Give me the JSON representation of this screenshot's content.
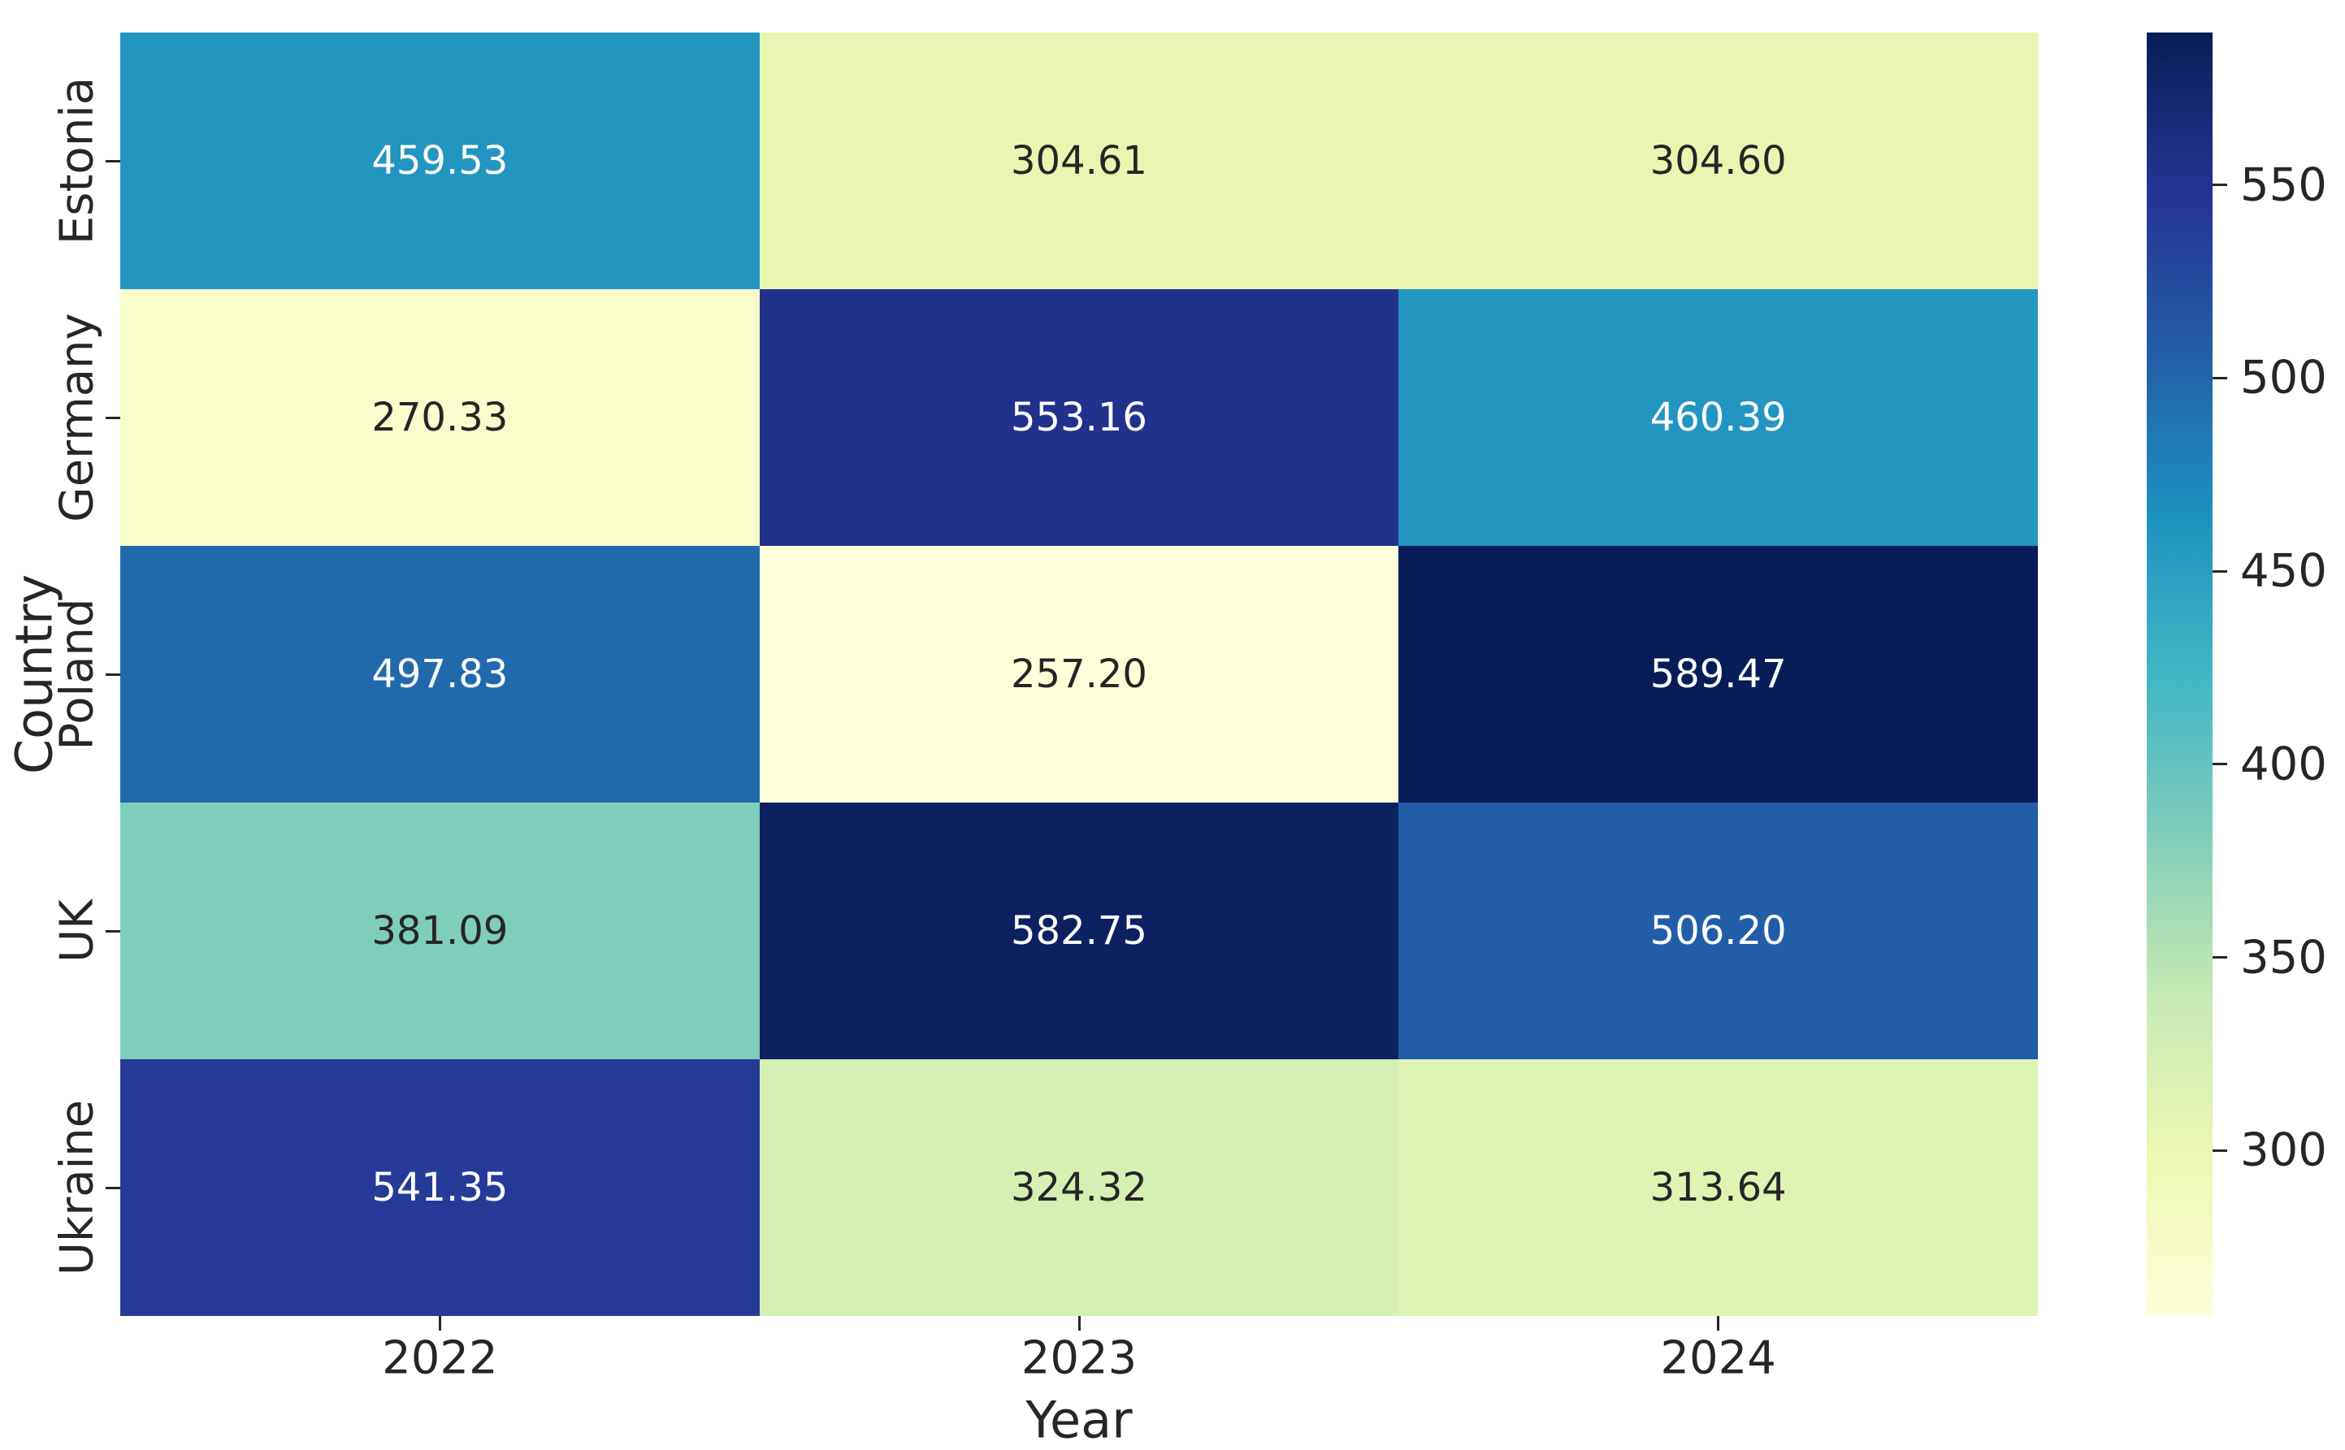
{
  "figure": {
    "xlabel": "Year",
    "ylabel": "Country",
    "background": "#ffffff",
    "text_color": "#262626"
  },
  "chart_data": {
    "type": "heatmap",
    "title": "",
    "xlabel": "Year",
    "ylabel": "Country",
    "colormap": "YlGnBu",
    "x": [
      "2022",
      "2023",
      "2024"
    ],
    "y": [
      "Estonia",
      "Germany",
      "Poland",
      "UK",
      "Ukraine"
    ],
    "values": [
      [
        459.53,
        304.61,
        304.6
      ],
      [
        270.33,
        553.16,
        460.39
      ],
      [
        497.83,
        257.2,
        589.47
      ],
      [
        381.09,
        582.75,
        506.2
      ],
      [
        541.35,
        324.32,
        313.64
      ]
    ],
    "annotations": [
      [
        "459.53",
        "304.61",
        "304.60"
      ],
      [
        "270.33",
        "553.16",
        "460.39"
      ],
      [
        "497.83",
        "257.20",
        "589.47"
      ],
      [
        "381.09",
        "582.75",
        "506.20"
      ],
      [
        "541.35",
        "324.32",
        "313.64"
      ]
    ],
    "cell_colors": [
      [
        "#2296c1",
        "#e8f6b1",
        "#e8f6b1"
      ],
      [
        "#f9fdcc",
        "#21318c",
        "#2295c1"
      ],
      [
        "#2169ad",
        "#ffffd9",
        "#081d58"
      ],
      [
        "#7fcdbb",
        "#0d2162",
        "#225ea8"
      ],
      [
        "#253b97",
        "#d6efb3",
        "#dff3b2"
      ]
    ],
    "cell_text_colors": [
      [
        "#ffffff",
        "#262626",
        "#262626"
      ],
      [
        "#262626",
        "#ffffff",
        "#ffffff"
      ],
      [
        "#ffffff",
        "#262626",
        "#ffffff"
      ],
      [
        "#262626",
        "#ffffff",
        "#ffffff"
      ],
      [
        "#ffffff",
        "#262626",
        "#262626"
      ]
    ],
    "vmin": 257.2,
    "vmax": 589.47,
    "grid": false,
    "legend_position": "colorbar-right",
    "colorbar": {
      "tick_labels": [
        "550",
        "500",
        "450",
        "400",
        "350",
        "300"
      ],
      "tick_values": [
        550,
        500,
        450,
        400,
        350,
        300
      ],
      "gradient_bottom_to_top": [
        "#ffffd9",
        "#edf8b1",
        "#c7e9b4",
        "#7fcdbb",
        "#41b6c4",
        "#1d91c0",
        "#225ea8",
        "#253494",
        "#081d58"
      ]
    }
  }
}
